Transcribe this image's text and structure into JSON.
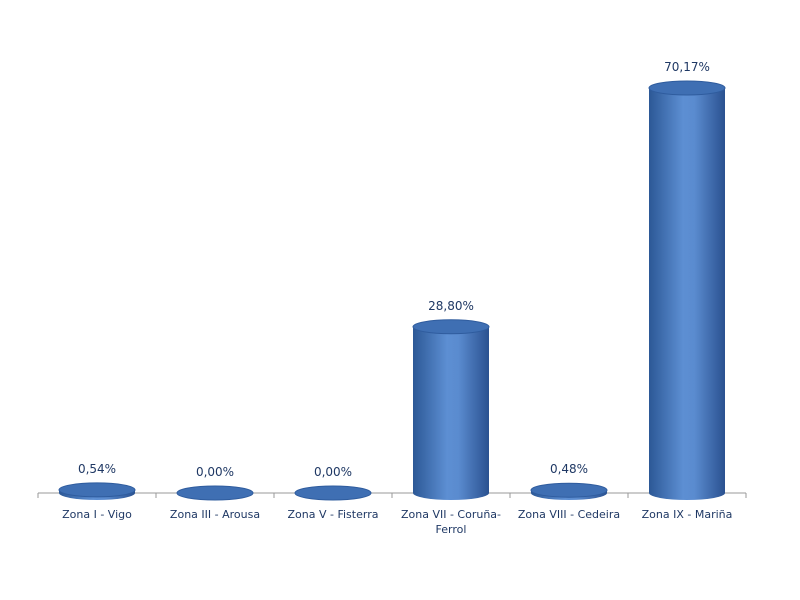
{
  "chart_data": {
    "type": "bar",
    "categories": [
      "Zona I - Vigo",
      "Zona III - Arousa",
      "Zona V - Fisterra",
      "Zona VII - Coruña-Ferrol",
      "Zona VIII - Cedeira",
      "Zona IX - Mariña"
    ],
    "values": [
      0.54,
      0,
      0,
      28.8,
      0.48,
      70.17
    ],
    "value_labels": [
      "0,54%",
      "0,00%",
      "0,00%",
      "28,80%",
      "0,48%",
      "70,17%"
    ],
    "color": "#4a7cc0"
  }
}
